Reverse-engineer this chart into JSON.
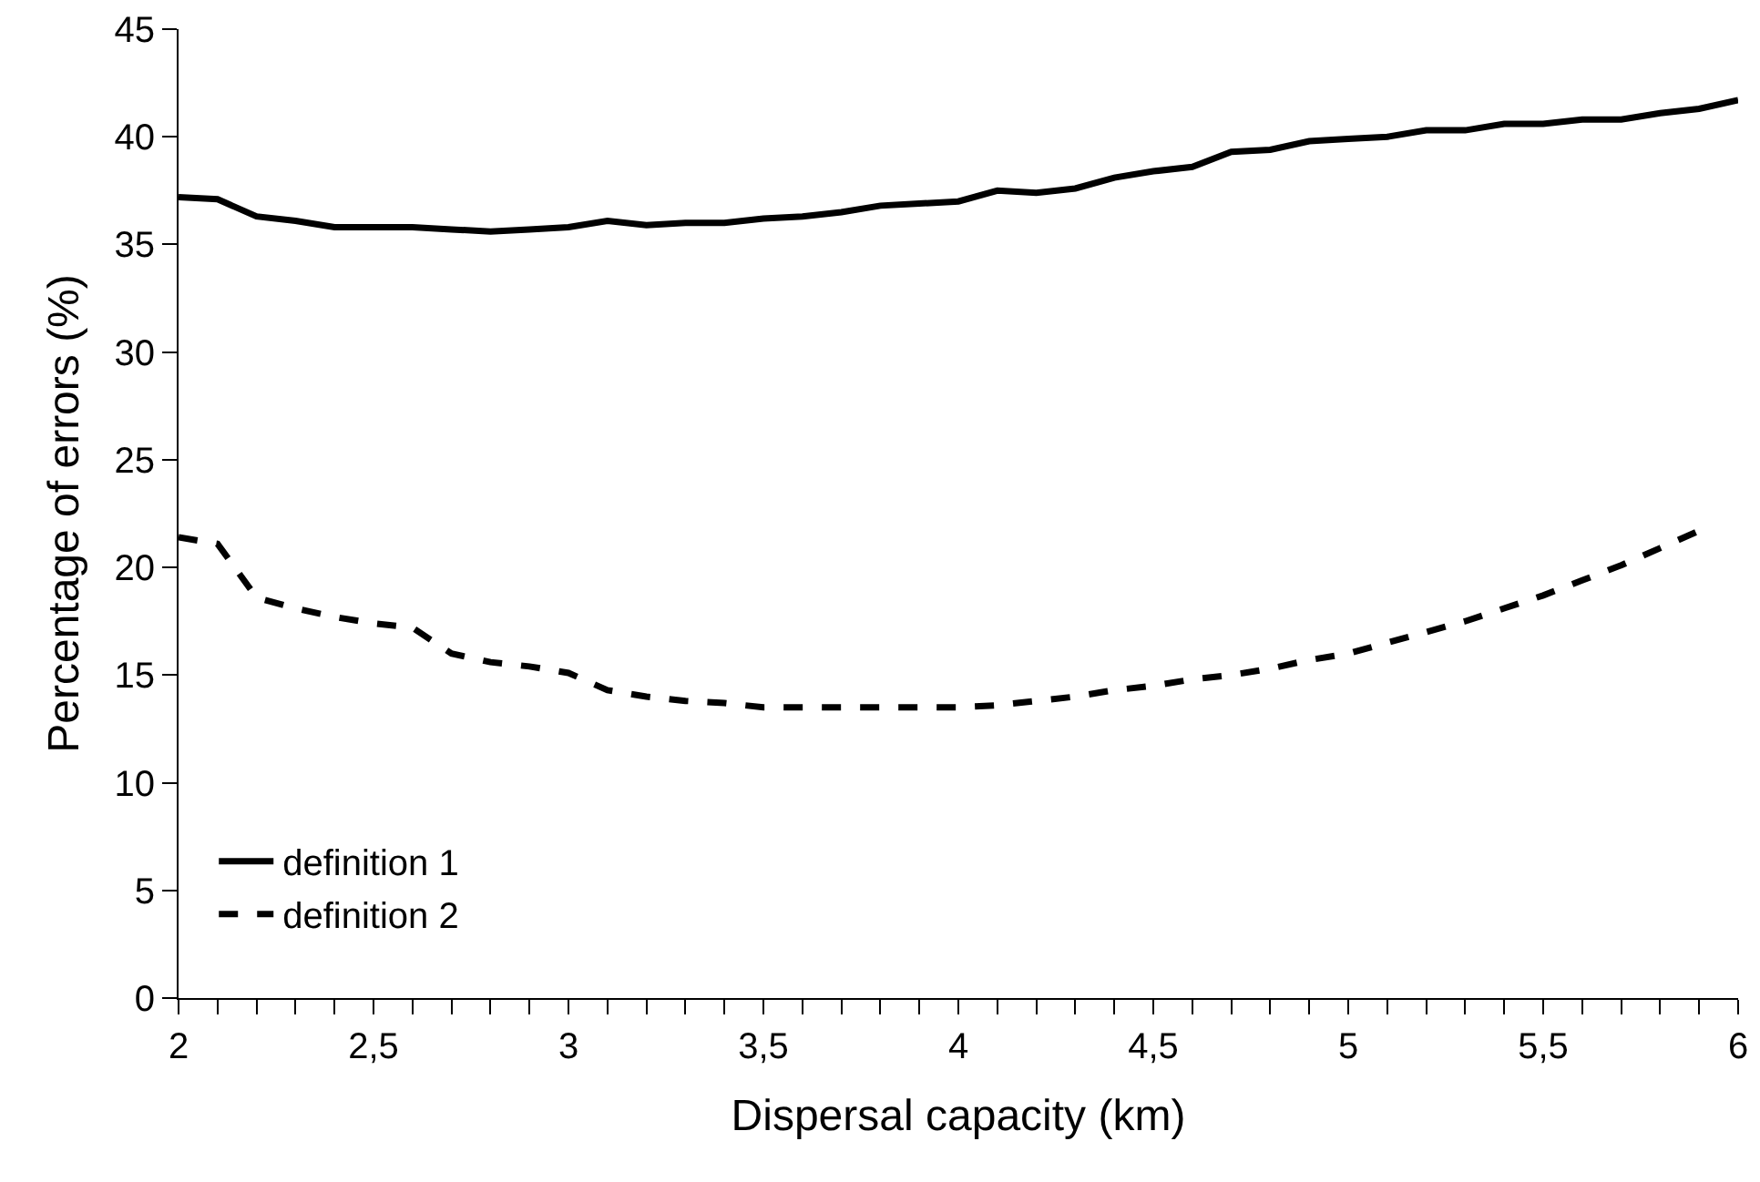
{
  "chart_data": {
    "type": "line",
    "xlabel": "Dispersal capacity (km)",
    "ylabel": "Percentage of errors (%)",
    "xlim": [
      2,
      6
    ],
    "ylim": [
      0,
      45
    ],
    "xticks": [
      {
        "value": 2,
        "label": "2"
      },
      {
        "value": 2.1,
        "label": null
      },
      {
        "value": 2.2,
        "label": null
      },
      {
        "value": 2.3,
        "label": null
      },
      {
        "value": 2.4,
        "label": null
      },
      {
        "value": 2.5,
        "label": "2,5"
      },
      {
        "value": 2.6,
        "label": null
      },
      {
        "value": 2.7,
        "label": null
      },
      {
        "value": 2.8,
        "label": null
      },
      {
        "value": 2.9,
        "label": null
      },
      {
        "value": 3,
        "label": "3"
      },
      {
        "value": 3.1,
        "label": null
      },
      {
        "value": 3.2,
        "label": null
      },
      {
        "value": 3.3,
        "label": null
      },
      {
        "value": 3.4,
        "label": null
      },
      {
        "value": 3.5,
        "label": "3,5"
      },
      {
        "value": 3.6,
        "label": null
      },
      {
        "value": 3.7,
        "label": null
      },
      {
        "value": 3.8,
        "label": null
      },
      {
        "value": 3.9,
        "label": null
      },
      {
        "value": 4,
        "label": "4"
      },
      {
        "value": 4.1,
        "label": null
      },
      {
        "value": 4.2,
        "label": null
      },
      {
        "value": 4.3,
        "label": null
      },
      {
        "value": 4.4,
        "label": null
      },
      {
        "value": 4.5,
        "label": "4,5"
      },
      {
        "value": 4.6,
        "label": null
      },
      {
        "value": 4.7,
        "label": null
      },
      {
        "value": 4.8,
        "label": null
      },
      {
        "value": 4.9,
        "label": null
      },
      {
        "value": 5,
        "label": "5"
      },
      {
        "value": 5.1,
        "label": null
      },
      {
        "value": 5.2,
        "label": null
      },
      {
        "value": 5.3,
        "label": null
      },
      {
        "value": 5.4,
        "label": null
      },
      {
        "value": 5.5,
        "label": "5,5"
      },
      {
        "value": 5.6,
        "label": null
      },
      {
        "value": 5.7,
        "label": null
      },
      {
        "value": 5.8,
        "label": null
      },
      {
        "value": 5.9,
        "label": null
      },
      {
        "value": 6,
        "label": "6"
      }
    ],
    "yticks": [
      0,
      5,
      10,
      15,
      20,
      25,
      30,
      35,
      40,
      45
    ],
    "grid": false,
    "legend": "bottom left",
    "marker": "none",
    "series": [
      {
        "name": "definition 1",
        "color": "#000000",
        "line_style": "solid",
        "x": [
          2,
          2.1,
          2.2,
          2.3,
          2.4,
          2.5,
          2.6,
          2.7,
          2.8,
          2.9,
          3,
          3.1,
          3.2,
          3.3,
          3.4,
          3.5,
          3.6,
          3.7,
          3.8,
          3.9,
          4,
          4.1,
          4.2,
          4.3,
          4.4,
          4.5,
          4.6,
          4.7,
          4.8,
          4.9,
          5,
          5.1,
          5.2,
          5.3,
          5.4,
          5.5,
          5.6,
          5.7,
          5.8,
          5.9,
          6
        ],
        "values": [
          37.2,
          37.1,
          36.3,
          36.1,
          35.8,
          35.8,
          35.8,
          35.7,
          35.6,
          35.7,
          35.8,
          36.1,
          35.9,
          36.0,
          36.0,
          36.2,
          36.3,
          36.5,
          36.8,
          36.9,
          37.0,
          37.5,
          37.4,
          37.6,
          38.1,
          38.4,
          38.6,
          39.3,
          39.4,
          39.8,
          39.9,
          40.0,
          40.3,
          40.3,
          40.6,
          40.6,
          40.8,
          40.8,
          41.1,
          41.3,
          41.7
        ]
      },
      {
        "name": "definition 2",
        "color": "#000000",
        "line_style": "dashed",
        "x": [
          2,
          2.1,
          2.2,
          2.3,
          2.4,
          2.5,
          2.6,
          2.7,
          2.8,
          2.9,
          3,
          3.1,
          3.2,
          3.3,
          3.4,
          3.5,
          3.6,
          3.7,
          3.8,
          3.9,
          4,
          4.1,
          4.2,
          4.3,
          4.4,
          4.5,
          4.6,
          4.7,
          4.8,
          4.9,
          5,
          5.1,
          5.2,
          5.3,
          5.4,
          5.5,
          5.6,
          5.7,
          5.8,
          5.9
        ],
        "values": [
          21.4,
          21.1,
          18.6,
          18.1,
          17.7,
          17.4,
          17.2,
          16.0,
          15.6,
          15.4,
          15.1,
          14.3,
          14.0,
          13.8,
          13.7,
          13.5,
          13.5,
          13.5,
          13.5,
          13.5,
          13.5,
          13.6,
          13.8,
          14.0,
          14.3,
          14.5,
          14.8,
          15.0,
          15.3,
          15.7,
          16.0,
          16.5,
          17.0,
          17.5,
          18.1,
          18.7,
          19.4,
          20.1,
          20.9,
          21.7
        ]
      }
    ]
  }
}
